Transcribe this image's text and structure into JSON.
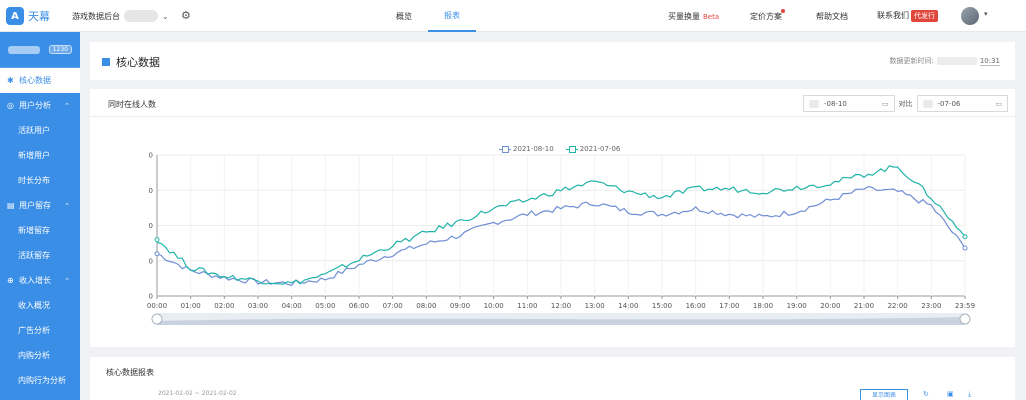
{
  "app": {
    "logo_mark": "A",
    "logo_text": "天幕",
    "game_label": "游戏数据后台"
  },
  "header": {
    "tabs": [
      {
        "label": "概览"
      },
      {
        "label": "报表"
      }
    ],
    "buy_label": "买量换量",
    "beta": "Beta",
    "pricing": "定价方案",
    "help": "帮助文档",
    "contact": "联系我们",
    "proxy": "代发行"
  },
  "sidebar": {
    "badge": "1230",
    "items": [
      {
        "label": "核心数据",
        "icon": "gear-icon",
        "active": true
      },
      {
        "label": "用户分析",
        "icon": "user-icon",
        "expanded": true
      },
      {
        "label": "活跃用户"
      },
      {
        "label": "新增用户"
      },
      {
        "label": "时长分布"
      },
      {
        "label": "用户留存",
        "icon": "retention-icon",
        "expanded": true
      },
      {
        "label": "新增留存"
      },
      {
        "label": "活跃留存"
      },
      {
        "label": "收入增长",
        "icon": "revenue-icon",
        "expanded": true
      },
      {
        "label": "收入概况"
      },
      {
        "label": "广告分析"
      },
      {
        "label": "内购分析"
      },
      {
        "label": "内购行为分析"
      }
    ]
  },
  "core": {
    "title": "核心数据",
    "update_label": "数据更新时间:",
    "update_time": "10:31"
  },
  "online_chart": {
    "title": "同时在线人数",
    "date_a": "-08-10",
    "compare_label": "对比",
    "date_b": "-07-06"
  },
  "table": {
    "title": "核心数据报表",
    "date_range": "2021-02-02 ~ 2021-02-02",
    "button": "显示图表"
  },
  "colors": {
    "primary": "#3b8ee6",
    "series_a": "#6f8fd4",
    "series_b": "#21b3a8",
    "danger": "#e0463b"
  },
  "chart_data": {
    "type": "line",
    "xlabel": "",
    "ylabel": "",
    "x": [
      "00:00",
      "01:00",
      "02:00",
      "03:00",
      "04:00",
      "05:00",
      "06:00",
      "07:00",
      "08:00",
      "09:00",
      "10:00",
      "11:00",
      "12:00",
      "13:00",
      "14:00",
      "15:00",
      "16:00",
      "17:00",
      "18:00",
      "19:00",
      "20:00",
      "21:00",
      "22:00",
      "23:00",
      "23:59"
    ],
    "y_ticks": [
      "0",
      "0",
      "0",
      "0",
      "0"
    ],
    "ylim": [
      0,
      100
    ],
    "series": [
      {
        "name": "2021-08-10",
        "values": [
          30,
          18,
          13,
          10,
          9,
          12,
          22,
          30,
          37,
          43,
          52,
          58,
          62,
          66,
          60,
          58,
          62,
          58,
          56,
          60,
          68,
          76,
          74,
          64,
          34
        ]
      },
      {
        "name": "2021-07-06",
        "values": [
          40,
          20,
          14,
          11,
          9,
          15,
          26,
          36,
          45,
          53,
          62,
          68,
          75,
          81,
          74,
          70,
          76,
          76,
          74,
          77,
          80,
          86,
          92,
          70,
          42
        ]
      }
    ],
    "legend": "top-center"
  }
}
